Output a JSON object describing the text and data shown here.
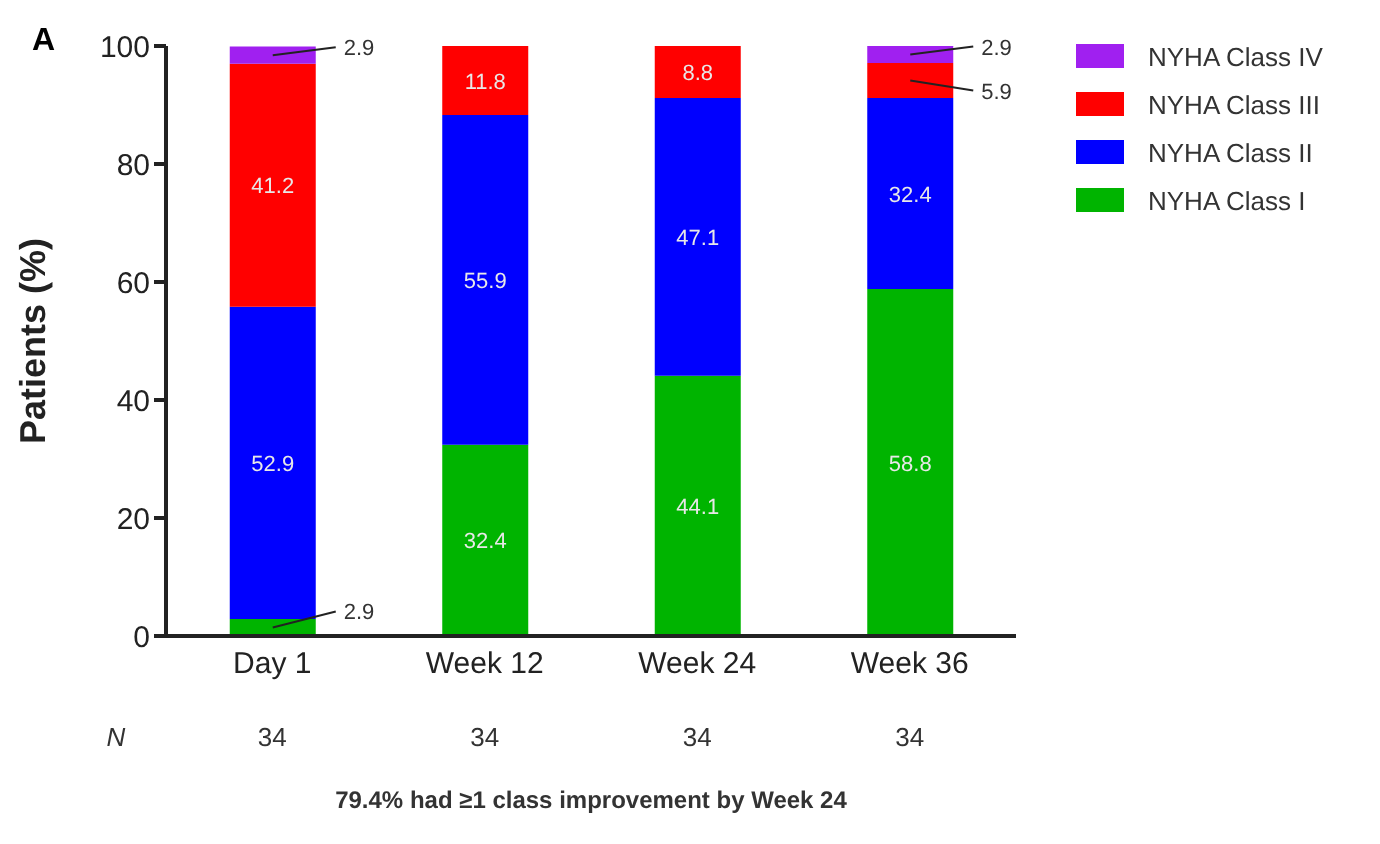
{
  "chart_data": {
    "type": "bar",
    "stacked": true,
    "categories": [
      "Day 1",
      "Week 12",
      "Week 24",
      "Week 36"
    ],
    "series": [
      {
        "name": "NYHA Class I",
        "color": "#00b400",
        "values": [
          2.9,
          32.4,
          44.1,
          58.8
        ],
        "value_labels": [
          "2.9",
          "32.4",
          "44.1",
          "58.8"
        ]
      },
      {
        "name": "NYHA Class II",
        "color": "#0000ff",
        "values": [
          52.9,
          55.9,
          47.1,
          32.4
        ],
        "value_labels": [
          "52.9",
          "55.9",
          "47.1",
          "32.4"
        ]
      },
      {
        "name": "NYHA Class III",
        "color": "#ff0000",
        "values": [
          41.2,
          11.8,
          8.8,
          5.9
        ],
        "value_labels": [
          "41.2",
          "11.8",
          "8.8",
          "5.9"
        ]
      },
      {
        "name": "NYHA Class IV",
        "color": "#a020f0",
        "values": [
          2.9,
          0,
          0,
          2.9
        ],
        "value_labels": [
          "2.9",
          null,
          null,
          "2.9"
        ]
      }
    ],
    "ylabel": "Patients (%)",
    "ylim": [
      0,
      100
    ],
    "yticks": [
      0,
      20,
      40,
      60,
      80,
      100
    ],
    "grid": false,
    "legend": "top right",
    "annotations": [
      "A",
      "N",
      "34",
      "34",
      "34",
      "34",
      "79.4% had ≥1 class improvement by Week 24"
    ]
  }
}
